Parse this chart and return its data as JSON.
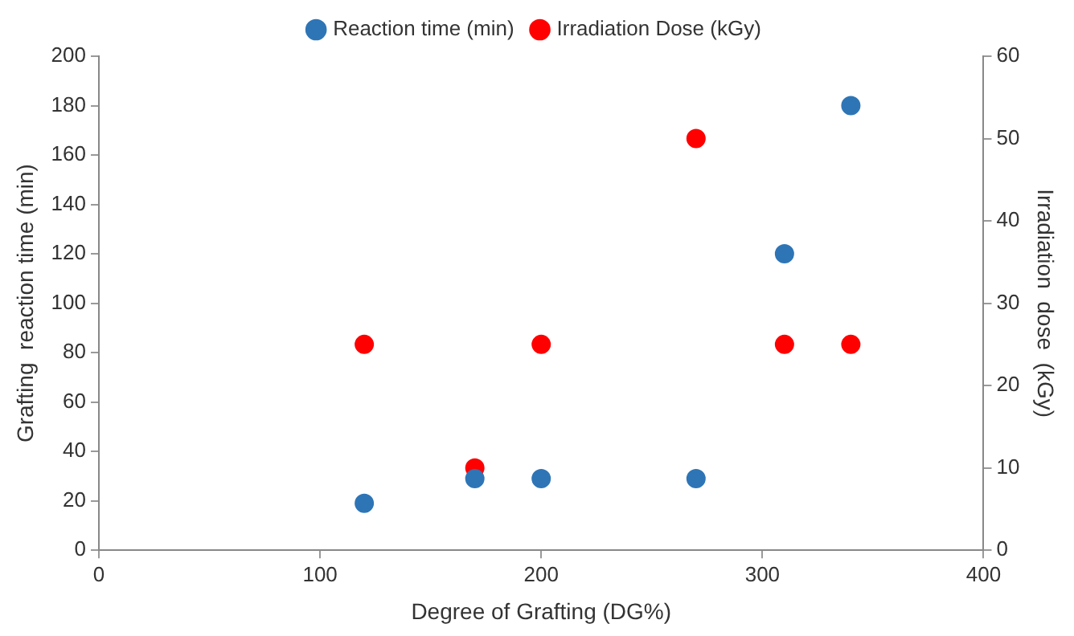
{
  "chart_data": {
    "type": "scatter",
    "xlabel": "Degree of Grafting (DG%)",
    "ylabel": "Grafting  reaction time (min)",
    "y2label": "Irradiation  dose  (kGy)",
    "xlim": [
      0,
      400
    ],
    "xticks": [
      0,
      100,
      200,
      300,
      400
    ],
    "ylim": [
      0,
      200
    ],
    "yticks": [
      0,
      20,
      40,
      60,
      80,
      100,
      120,
      140,
      160,
      180,
      200
    ],
    "y2lim": [
      0,
      60
    ],
    "y2ticks": [
      0,
      10,
      20,
      30,
      40,
      50,
      60
    ],
    "grid": false,
    "legend": "top",
    "marker": "circle",
    "series": [
      {
        "name": "Reaction time (min)",
        "color": "#2e75b6",
        "x": [
          120,
          170,
          200,
          270,
          310,
          340
        ],
        "values": [
          19,
          29,
          29,
          29,
          120,
          180
        ]
      },
      {
        "name": "Irradiation Dose (kGy)",
        "color": "#ff0000",
        "axis": "y2",
        "x": [
          120,
          170,
          200,
          270,
          310,
          340
        ],
        "values": [
          25,
          10,
          25,
          50,
          25,
          25
        ]
      }
    ]
  }
}
